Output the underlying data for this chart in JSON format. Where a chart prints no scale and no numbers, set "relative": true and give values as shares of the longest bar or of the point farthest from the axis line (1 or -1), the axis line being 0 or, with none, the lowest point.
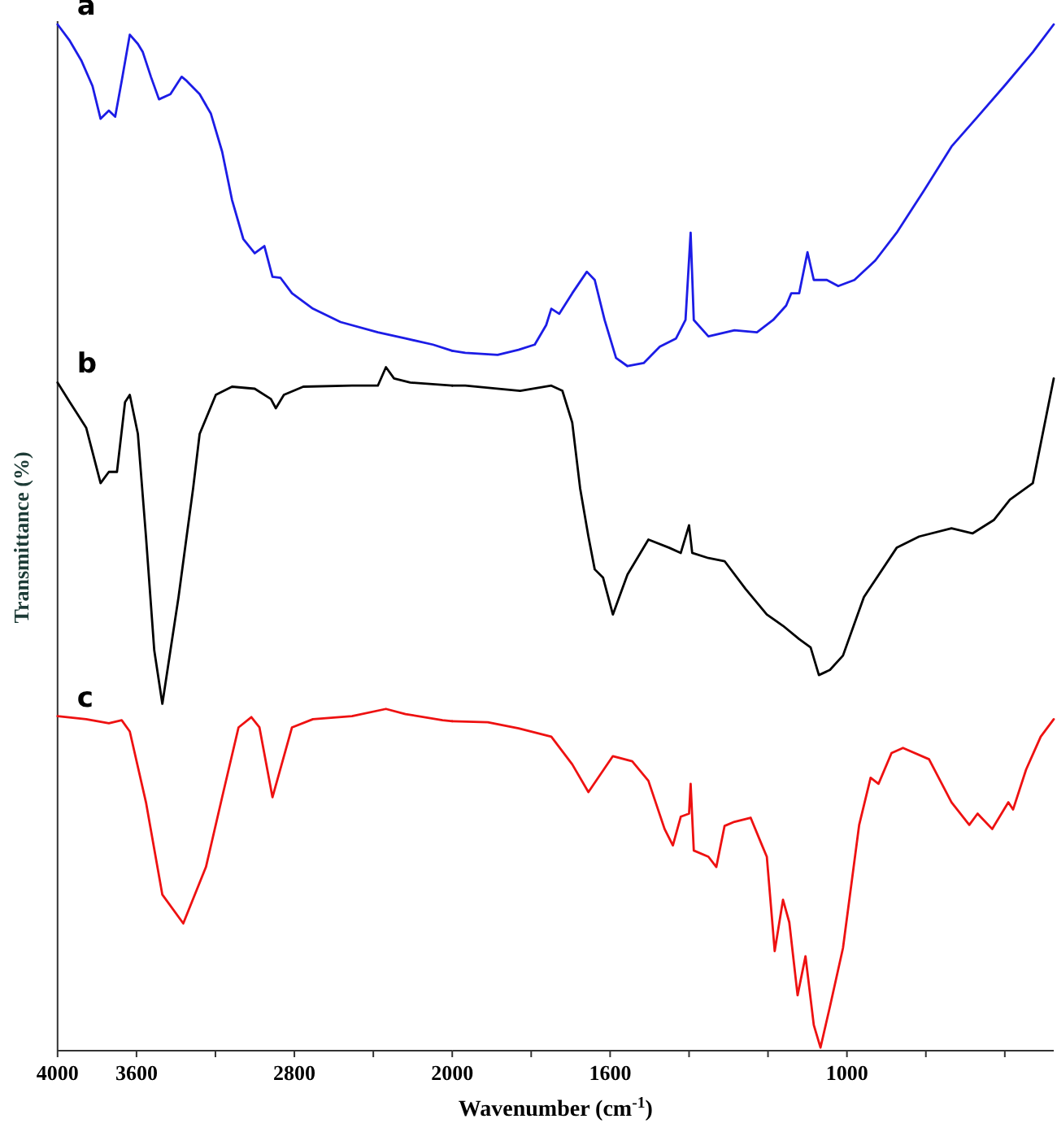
{
  "chart_data": [
    {
      "type": "line",
      "xlabel": "Wavenumber (cm$^{-1}$)",
      "ylabel": "Transmittance (%)",
      "relative": true,
      "xlim": [
        4000,
        2000
      ],
      "xticks": [
        4000,
        3600,
        {
          "value": 3200,
          "label": null
        },
        2800,
        {
          "value": 2400,
          "label": null
        },
        2000
      ],
      "series": [
        {
          "name": "a",
          "color": "#1c1ce6",
          "x": [
            4000,
            3938,
            3880,
            3823,
            3782,
            3740,
            3708,
            3675,
            3634,
            3593,
            3568,
            3527,
            3486,
            3428,
            3371,
            3346,
            3280,
            3223,
            3166,
            3116,
            3059,
            3001,
            2952,
            2911,
            2870,
            2812,
            2706,
            2566,
            2377,
            2237,
            2098,
            2000
          ],
          "values": [
            1.0,
            0.984,
            0.965,
            0.94,
            0.908,
            0.916,
            0.91,
            0.945,
            0.99,
            0.981,
            0.973,
            0.949,
            0.927,
            0.932,
            0.949,
            0.945,
            0.932,
            0.913,
            0.876,
            0.829,
            0.791,
            0.777,
            0.784,
            0.754,
            0.753,
            0.738,
            0.723,
            0.71,
            0.7,
            0.694,
            0.688,
            0.682
          ]
        },
        {
          "name": "b",
          "color": "#000000",
          "x": [
            4000,
            3938,
            3855,
            3782,
            3740,
            3699,
            3658,
            3634,
            3593,
            3552,
            3510,
            3469,
            3428,
            3387,
            3346,
            3313,
            3280,
            3198,
            3116,
            3001,
            2919,
            2894,
            2853,
            2755,
            2508,
            2377,
            2336,
            2295,
            2213,
            2000
          ],
          "values": [
            0.651,
            0.632,
            0.607,
            0.553,
            0.564,
            0.564,
            0.632,
            0.639,
            0.601,
            0.501,
            0.39,
            0.338,
            0.39,
            0.442,
            0.501,
            0.548,
            0.601,
            0.639,
            0.647,
            0.645,
            0.635,
            0.626,
            0.639,
            0.647,
            0.648,
            0.648,
            0.666,
            0.655,
            0.651,
            0.648
          ]
        },
        {
          "name": "c",
          "color": "#ee1111",
          "x": [
            4000,
            3855,
            3740,
            3675,
            3634,
            3552,
            3469,
            3363,
            3248,
            3166,
            3083,
            3018,
            2977,
            2911,
            2812,
            2706,
            2508,
            2336,
            2237,
            2049,
            2000
          ],
          "values": [
            0.326,
            0.323,
            0.319,
            0.322,
            0.311,
            0.242,
            0.152,
            0.124,
            0.179,
            0.247,
            0.315,
            0.325,
            0.315,
            0.247,
            0.315,
            0.323,
            0.326,
            0.333,
            0.328,
            0.322,
            0.321
          ]
        }
      ]
    },
    {
      "type": "line",
      "relative": true,
      "xlim": [
        2000,
        476
      ],
      "xticks": [
        {
          "value": 1800,
          "label": null
        },
        1600,
        {
          "value": 1400,
          "label": null
        },
        {
          "value": 1200,
          "label": null
        },
        1000,
        {
          "value": 800,
          "label": null
        },
        {
          "value": 600,
          "label": null
        }
      ],
      "series": [
        {
          "color": "#1c1ce6",
          "x": [
            2000,
            1967,
            1885,
            1832,
            1791,
            1762,
            1749,
            1729,
            1696,
            1659,
            1639,
            1614,
            1585,
            1556,
            1515,
            1474,
            1433,
            1409,
            1396,
            1388,
            1351,
            1285,
            1228,
            1187,
            1154,
            1141,
            1121,
            1100,
            1084,
            1051,
            1022,
            981,
            928,
            874,
            805,
            735,
            669,
            599,
            529,
            476
          ],
          "values": [
            0.682,
            0.68,
            0.678,
            0.683,
            0.688,
            0.707,
            0.723,
            0.718,
            0.738,
            0.759,
            0.751,
            0.712,
            0.675,
            0.667,
            0.67,
            0.686,
            0.694,
            0.712,
            0.797,
            0.712,
            0.696,
            0.702,
            0.7,
            0.712,
            0.726,
            0.738,
            0.738,
            0.778,
            0.751,
            0.751,
            0.745,
            0.751,
            0.77,
            0.797,
            0.838,
            0.881,
            0.91,
            0.941,
            0.973,
            1.0
          ]
        },
        {
          "color": "#000000",
          "x": [
            2000,
            1967,
            1828,
            1749,
            1721,
            1696,
            1676,
            1655,
            1639,
            1618,
            1593,
            1556,
            1503,
            1450,
            1421,
            1400,
            1392,
            1351,
            1310,
            1257,
            1203,
            1162,
            1121,
            1092,
            1071,
            1043,
            1010,
            957,
            874,
            817,
            735,
            682,
            628,
            587,
            529,
            476
          ],
          "values": [
            0.648,
            0.648,
            0.643,
            0.648,
            0.643,
            0.612,
            0.548,
            0.501,
            0.469,
            0.461,
            0.425,
            0.464,
            0.498,
            0.49,
            0.485,
            0.512,
            0.485,
            0.48,
            0.477,
            0.45,
            0.425,
            0.414,
            0.401,
            0.393,
            0.366,
            0.371,
            0.385,
            0.442,
            0.49,
            0.501,
            0.509,
            0.504,
            0.517,
            0.537,
            0.553,
            0.655
          ]
        },
        {
          "color": "#ee1111",
          "x": [
            2000,
            1910,
            1832,
            1749,
            1696,
            1655,
            1593,
            1544,
            1503,
            1462,
            1441,
            1421,
            1400,
            1396,
            1388,
            1351,
            1331,
            1310,
            1285,
            1244,
            1215,
            1203,
            1183,
            1162,
            1146,
            1125,
            1105,
            1084,
            1067,
            1043,
            1010,
            969,
            940,
            920,
            887,
            858,
            792,
            735,
            690,
            669,
            632,
            591,
            579,
            546,
            509,
            476
          ],
          "values": [
            0.321,
            0.32,
            0.314,
            0.306,
            0.279,
            0.252,
            0.287,
            0.282,
            0.263,
            0.216,
            0.2,
            0.228,
            0.231,
            0.26,
            0.195,
            0.189,
            0.179,
            0.219,
            0.223,
            0.227,
            0.2,
            0.189,
            0.097,
            0.147,
            0.125,
            0.054,
            0.092,
            0.025,
            0.003,
            0.043,
            0.1,
            0.22,
            0.266,
            0.26,
            0.29,
            0.295,
            0.284,
            0.242,
            0.22,
            0.231,
            0.216,
            0.242,
            0.235,
            0.274,
            0.306,
            0.323
          ]
        }
      ]
    }
  ]
}
